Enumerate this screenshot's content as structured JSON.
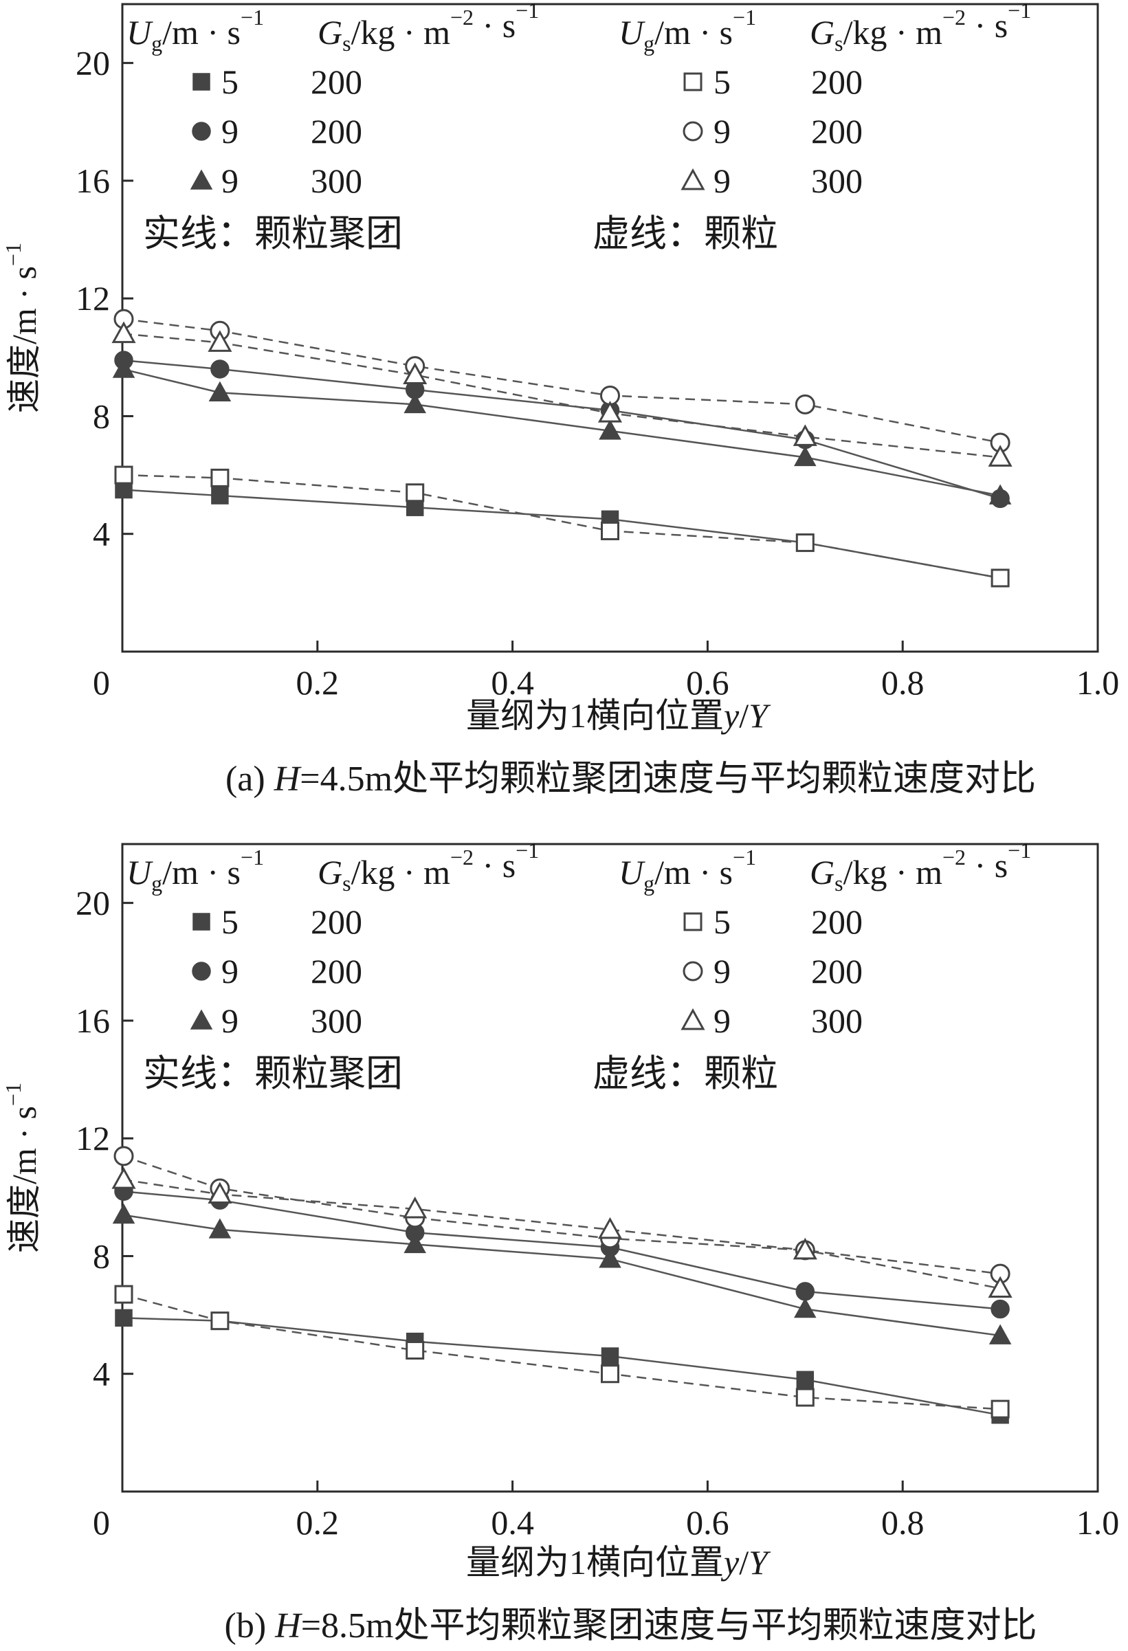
{
  "chart_data": [
    {
      "type": "line",
      "caption": "(a) H=4.5m处平均颗粒聚团速度与平均颗粒速度对比",
      "xlabel": "量纲为1横向位置y/Y",
      "ylabel": "速度/m·s⁻¹",
      "xlim": [
        0,
        1.0
      ],
      "ylim": [
        0,
        22
      ],
      "xticks": [
        "0",
        "0.2",
        "0.4",
        "0.6",
        "0.8",
        "1.0"
      ],
      "yticks": [
        "4",
        "8",
        "12",
        "16",
        "20"
      ],
      "x": [
        0.0,
        0.1,
        0.3,
        0.5,
        0.7,
        0.9
      ],
      "legend_header": [
        "Ug/m·s⁻¹",
        "Gs/kg·m⁻²·s⁻¹",
        "Ug/m·s⁻¹",
        "Gs/kg·m⁻²·s⁻¹"
      ],
      "legend_rows": [
        [
          "5",
          "200",
          "5",
          "200"
        ],
        [
          "9",
          "200",
          "9",
          "200"
        ],
        [
          "9",
          "300",
          "9",
          "300"
        ]
      ],
      "notes": [
        "实线：颗粒聚团",
        "虚线：颗粒"
      ],
      "series": [
        {
          "marker": "square-filled",
          "line": "solid",
          "values": [
            5.5,
            5.3,
            4.9,
            4.5,
            3.7,
            2.5
          ]
        },
        {
          "marker": "circle-filled",
          "line": "solid",
          "values": [
            9.9,
            9.6,
            8.9,
            8.2,
            7.2,
            5.2
          ]
        },
        {
          "marker": "triangle-filled",
          "line": "solid",
          "values": [
            9.6,
            8.8,
            8.4,
            7.5,
            6.6,
            5.3
          ]
        },
        {
          "marker": "square-open",
          "line": "dashed",
          "values": [
            6.0,
            5.9,
            5.4,
            4.1,
            3.7,
            2.5
          ]
        },
        {
          "marker": "circle-open",
          "line": "dashed",
          "values": [
            11.3,
            10.9,
            9.7,
            8.7,
            8.4,
            7.1
          ]
        },
        {
          "marker": "triangle-open",
          "line": "dashed",
          "values": [
            10.8,
            10.5,
            9.4,
            8.1,
            7.3,
            6.6
          ]
        }
      ]
    },
    {
      "type": "line",
      "caption": "(b) H=8.5m处平均颗粒聚团速度与平均颗粒速度对比",
      "xlabel": "量纲为1横向位置y/Y",
      "ylabel": "速度/m·s⁻¹",
      "xlim": [
        0,
        1.0
      ],
      "ylim": [
        0,
        22
      ],
      "xticks": [
        "0",
        "0.2",
        "0.4",
        "0.6",
        "0.8",
        "1.0"
      ],
      "yticks": [
        "4",
        "8",
        "12",
        "16",
        "20"
      ],
      "x": [
        0.0,
        0.1,
        0.3,
        0.5,
        0.7,
        0.9
      ],
      "legend_header": [
        "Ug/m·s⁻¹",
        "Gs/kg·m⁻²·s⁻¹",
        "Ug/m·s⁻¹",
        "Gs/kg·m⁻²·s⁻¹"
      ],
      "legend_rows": [
        [
          "5",
          "200",
          "5",
          "200"
        ],
        [
          "9",
          "200",
          "9",
          "200"
        ],
        [
          "9",
          "300",
          "9",
          "300"
        ]
      ],
      "notes": [
        "实线：颗粒聚团",
        "虚线：颗粒"
      ],
      "series": [
        {
          "marker": "square-filled",
          "line": "solid",
          "values": [
            5.9,
            5.8,
            5.1,
            4.6,
            3.8,
            2.6
          ]
        },
        {
          "marker": "circle-filled",
          "line": "solid",
          "values": [
            10.2,
            9.9,
            8.8,
            8.3,
            6.8,
            6.2
          ]
        },
        {
          "marker": "triangle-filled",
          "line": "solid",
          "values": [
            9.4,
            8.9,
            8.4,
            7.9,
            6.2,
            5.3
          ]
        },
        {
          "marker": "square-open",
          "line": "dashed",
          "values": [
            6.7,
            5.8,
            4.8,
            4.0,
            3.2,
            2.8
          ]
        },
        {
          "marker": "circle-open",
          "line": "dashed",
          "values": [
            11.4,
            10.3,
            9.3,
            8.6,
            8.2,
            7.4
          ]
        },
        {
          "marker": "triangle-open",
          "line": "dashed",
          "values": [
            10.6,
            10.1,
            9.6,
            8.9,
            8.2,
            6.9
          ]
        }
      ]
    }
  ]
}
